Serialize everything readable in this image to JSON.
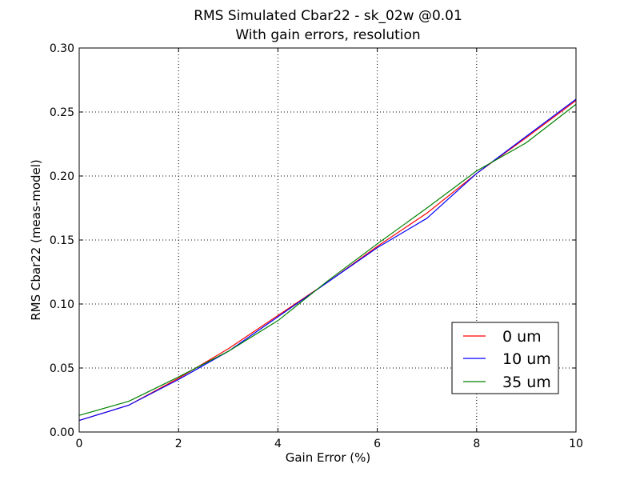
{
  "chart_data": {
    "type": "line",
    "title": "RMS Simulated Cbar22 - sk_02w @0.01",
    "subtitle": "With gain errors, resolution",
    "xlabel": "Gain Error (%)",
    "ylabel": "RMS Cbar22 (meas-model)",
    "xlim": [
      0,
      10
    ],
    "ylim": [
      0,
      0.3
    ],
    "xticks": [
      0,
      2,
      4,
      6,
      8,
      10
    ],
    "xtick_labels": [
      "0",
      "2",
      "4",
      "6",
      "8",
      "10"
    ],
    "yticks": [
      0,
      0.05,
      0.1,
      0.15,
      0.2,
      0.25,
      0.3
    ],
    "ytick_labels": [
      "0.00",
      "0.05",
      "0.10",
      "0.15",
      "0.20",
      "0.25",
      "0.30"
    ],
    "grid": true,
    "legend_position": "lower-right",
    "x": [
      0,
      1,
      2,
      3,
      4,
      5,
      6,
      7,
      8,
      9,
      10
    ],
    "series": [
      {
        "name": "0 um",
        "color": "#ff0000",
        "values": [
          0.009,
          0.021,
          0.042,
          0.065,
          0.091,
          0.117,
          0.145,
          0.171,
          0.202,
          0.23,
          0.259
        ]
      },
      {
        "name": "10 um",
        "color": "#0000ff",
        "values": [
          0.009,
          0.021,
          0.041,
          0.063,
          0.09,
          0.117,
          0.144,
          0.167,
          0.202,
          0.231,
          0.26
        ]
      },
      {
        "name": "35 um",
        "color": "#008000",
        "values": [
          0.013,
          0.024,
          0.043,
          0.063,
          0.087,
          0.118,
          0.147,
          0.175,
          0.204,
          0.226,
          0.256
        ]
      }
    ]
  }
}
